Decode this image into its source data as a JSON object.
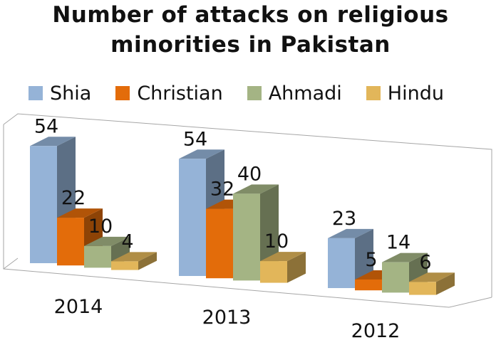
{
  "chart_data": {
    "type": "bar",
    "title_lines": [
      "Number of attacks on religious",
      "minorities in Pakistan"
    ],
    "categories": [
      "2014",
      "2013",
      "2012"
    ],
    "series": [
      {
        "name": "Shia",
        "values": [
          54,
          54,
          23
        ],
        "color": "#95b3d7"
      },
      {
        "name": "Christian",
        "values": [
          22,
          32,
          5
        ],
        "color": "#e36c0a"
      },
      {
        "name": "Ahmadi",
        "values": [
          10,
          40,
          14
        ],
        "color": "#a4b484"
      },
      {
        "name": "Hindu",
        "values": [
          4,
          10,
          6
        ],
        "color": "#e2b65a"
      }
    ],
    "legend_position": "top",
    "projection": "3d-perspective"
  }
}
